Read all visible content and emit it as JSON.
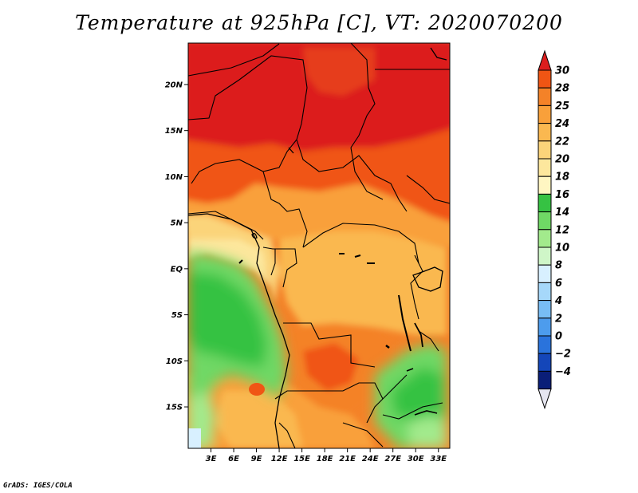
{
  "title": "Temperature at 925hPa [C], VT: 2020070200",
  "credit": "GrADS: IGES/COLA",
  "map": {
    "lon_range": [
      0,
      34.5
    ],
    "lat_range": [
      -19.5,
      24.5
    ],
    "lat_ticks": [
      {
        "value": 20,
        "label": "20N"
      },
      {
        "value": 15,
        "label": "15N"
      },
      {
        "value": 10,
        "label": "10N"
      },
      {
        "value": 5,
        "label": "5N"
      },
      {
        "value": 0,
        "label": "EQ"
      },
      {
        "value": -5,
        "label": "5S"
      },
      {
        "value": -10,
        "label": "10S"
      },
      {
        "value": -15,
        "label": "15S"
      }
    ],
    "lon_ticks": [
      {
        "value": 3,
        "label": "3E"
      },
      {
        "value": 6,
        "label": "6E"
      },
      {
        "value": 9,
        "label": "9E"
      },
      {
        "value": 12,
        "label": "12E"
      },
      {
        "value": 15,
        "label": "15E"
      },
      {
        "value": 18,
        "label": "18E"
      },
      {
        "value": 21,
        "label": "21E"
      },
      {
        "value": 24,
        "label": "24E"
      },
      {
        "value": 27,
        "label": "27E"
      },
      {
        "value": 30,
        "label": "30E"
      },
      {
        "value": 33,
        "label": "33E"
      }
    ]
  },
  "colorbar": {
    "levels": [
      "30",
      "28",
      "25",
      "24",
      "22",
      "20",
      "18",
      "16",
      "14",
      "12",
      "10",
      "8",
      "6",
      "4",
      "2",
      "0",
      "−2",
      "−4"
    ],
    "colors": [
      "#f05514",
      "#f48228",
      "#f9a03a",
      "#fab850",
      "#fbd47a",
      "#fde79d",
      "#fff6c2",
      "#36c243",
      "#6fd865",
      "#a2ea8c",
      "#cff6c8",
      "#d8f0ff",
      "#a6d8fa",
      "#78bdf4",
      "#4d9ced",
      "#2a73dc",
      "#1446b9",
      "#0a1e78"
    ],
    "top_color": "#dc1e1e",
    "bottom_color": "#e6e6f0"
  }
}
